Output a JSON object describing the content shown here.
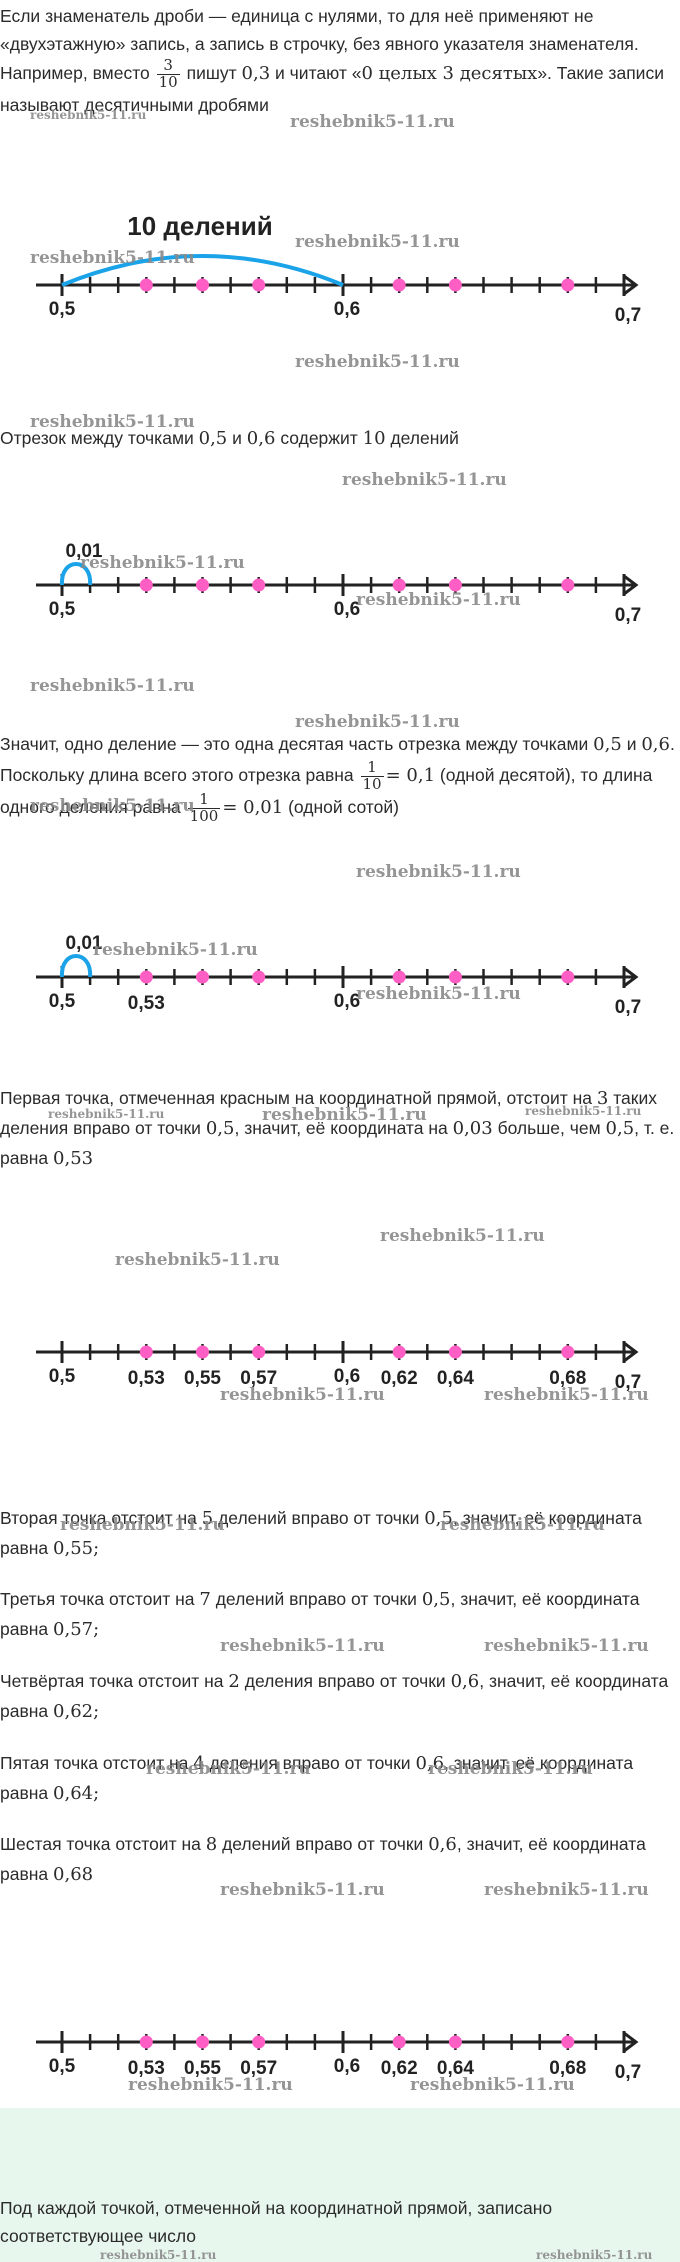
{
  "intro": {
    "line1": "Если знаменатель дроби — единица с нулями, то для неё применяют не «двухэтажную» запись, а запись в строчку, без явного указателя знаменателя. Например, вместо",
    "frac_num": "3",
    "frac_den": "10",
    "mid1": "пишут",
    "val1": "0,3",
    "mid2": "и читают «",
    "read": "0 целых 3 десятых",
    "end": "». Такие записи называют десятичными дробями"
  },
  "segment_text": {
    "before": "Отрезок между точками",
    "a": "0,5",
    "and": "и",
    "b": "0,6",
    "mid": "содержит",
    "n": "10",
    "after": "делений"
  },
  "division_text": {
    "p1": "Значит, одно деление — это одна десятая часть отрезка между точками",
    "a": "0,5",
    "and": "и",
    "b": "0,6",
    "p2": ". Поскольку длина всего этого отрезка равна",
    "f1_num": "1",
    "f1_den": "10",
    "eq1": "= 0,1",
    "p3": "(одной десятой), то длина одного деления равна",
    "f2_num": "1",
    "f2_den": "100",
    "eq2": "= 0,01",
    "p4": "(одной сотой)"
  },
  "first_point_text": {
    "p1": "Первая точка, отмеченная красным на координатной прямой, отстоит на",
    "n": "3",
    "p2": "таких деления вправо от точки",
    "a": "0,5",
    "p3": ", значит, её координата на",
    "d": "0,03",
    "p4": "больше, чем",
    "b": "0,5",
    "p5": ", т. е. равна",
    "r": "0,53"
  },
  "points_text": [
    {
      "p1": "Вторая точка отстоит на",
      "n": "5",
      "p2": "делений вправо от точки",
      "a": "0,5",
      "p3": ", значит, её координата равна",
      "r": "0,55;"
    },
    {
      "p1": "Третья точка отстоит на",
      "n": "7",
      "p2": "делений вправо от точки",
      "a": "0,5",
      "p3": ", значит, её координата равна",
      "r": "0,57;"
    },
    {
      "p1": "Четвёртая точка отстоит на",
      "n": "2",
      "p2": "деления вправо от точки",
      "a": "0,6",
      "p3": ", значит, её координата равна",
      "r": "0,62;"
    },
    {
      "p1": "Пятая точка отстоит на",
      "n": "4",
      "p2": "деления вправо от точки",
      "a": "0,6",
      "p3": ", значит, её координата равна",
      "r": "0,64;"
    },
    {
      "p1": "Шестая точка отстоит на",
      "n": "8",
      "p2": "делений вправо от точки",
      "a": "0,6",
      "p3": ", значит, её координата равна",
      "r": "0,68"
    }
  ],
  "footer_text": "Под каждой точкой, отмеченной на координатной прямой, записано соответствующее число",
  "watermark": "reshebnik5-11.ru",
  "lines": {
    "arc_label": "10 делений",
    "step_label": "0,01",
    "label_05": "0,5",
    "label_06": "0,6",
    "label_07": "0,7",
    "point_labels": [
      "0,53",
      "0,55",
      "0,57",
      "0,62",
      "0,64",
      "0,68"
    ],
    "arc_color": "#1aa3e8",
    "dot_color": "#ff5ec4"
  }
}
